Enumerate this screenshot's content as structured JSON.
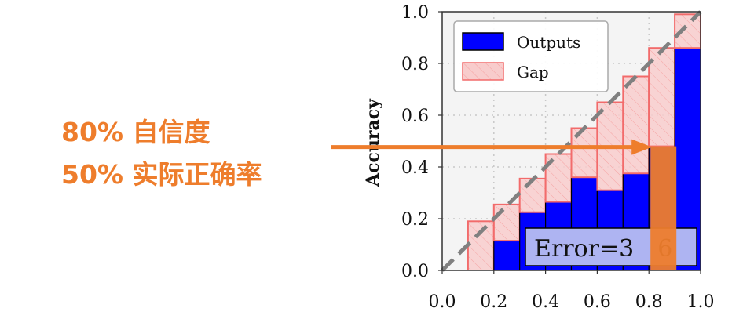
{
  "chart_data": {
    "type": "bar",
    "xlabel": "",
    "ylabel": "Accuracy",
    "xlim": [
      0.0,
      1.0
    ],
    "ylim": [
      0.0,
      1.0
    ],
    "xticks": [
      "0.0",
      "0.2",
      "0.4",
      "0.6",
      "0.8",
      "1.0"
    ],
    "yticks": [
      "0.0",
      "0.2",
      "0.4",
      "0.6",
      "0.8",
      "1.0"
    ],
    "grid": true,
    "legend_position": "top-left",
    "bin_width": 0.1,
    "bins": [
      0.05,
      0.15,
      0.25,
      0.35,
      0.45,
      0.55,
      0.65,
      0.75,
      0.85,
      0.95
    ],
    "series": [
      {
        "name": "Outputs",
        "color": "#0000FF",
        "values": [
          0.0,
          0.0,
          0.115,
          0.225,
          0.265,
          0.36,
          0.31,
          0.375,
          0.48,
          0.86
        ]
      },
      {
        "name": "Gap",
        "color": "#F8CCCC",
        "edge_color": "#F26B6B",
        "values": [
          0.0,
          0.19,
          0.14,
          0.13,
          0.185,
          0.19,
          0.34,
          0.375,
          0.38,
          0.13
        ]
      }
    ],
    "diagonal": {
      "style": "dashed",
      "color": "#808080"
    },
    "error_box": {
      "text": "Error=3",
      "suffix": "6",
      "background": "#AEB4F2"
    }
  },
  "annotation": {
    "line1": "80% 自信度",
    "line2": "50% 实际正确率",
    "color": "#EE7D2C",
    "arrow_to_confidence": 0.8,
    "highlight_value": 0.48
  }
}
